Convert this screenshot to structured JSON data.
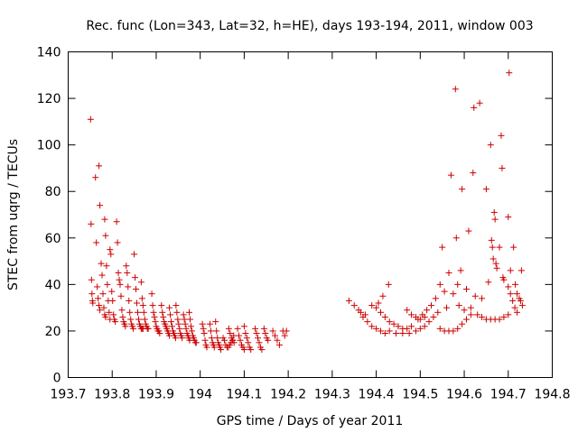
{
  "chart_data": {
    "type": "scatter",
    "title": "Rec. func (Lon=343, Lat=32, h=HE), days 193-194, 2011, window 003",
    "xlabel": "GPS time / Days of year 2011",
    "ylabel": "STEC from uqrg / TECUs",
    "xlim": [
      193.7,
      194.8
    ],
    "ylim": [
      0,
      140
    ],
    "xticks": [
      "193.7",
      "193.8",
      "193.9",
      "194",
      "194.1",
      "194.2",
      "194.3",
      "194.4",
      "194.5",
      "194.6",
      "194.7",
      "194.8"
    ],
    "xtick_values": [
      193.7,
      193.8,
      193.9,
      194.0,
      194.1,
      194.2,
      194.3,
      194.4,
      194.5,
      194.6,
      194.7,
      194.8
    ],
    "yticks": [
      "0",
      "20",
      "40",
      "60",
      "80",
      "100",
      "120",
      "140"
    ],
    "ytick_values": [
      0,
      20,
      40,
      60,
      80,
      100,
      120,
      140
    ],
    "grid": false,
    "legend": false,
    "color": "#cc0000",
    "series": [
      {
        "points": [
          [
            193.751,
            111
          ],
          [
            193.752,
            66
          ],
          [
            193.753,
            42
          ],
          [
            193.754,
            36
          ],
          [
            193.755,
            33
          ],
          [
            193.756,
            32
          ],
          [
            193.762,
            86
          ],
          [
            193.764,
            58
          ],
          [
            193.766,
            39
          ],
          [
            193.768,
            34
          ],
          [
            193.77,
            31
          ],
          [
            193.772,
            29
          ],
          [
            193.77,
            91
          ],
          [
            193.772,
            74
          ],
          [
            193.775,
            49
          ],
          [
            193.777,
            44
          ],
          [
            193.779,
            36
          ],
          [
            193.781,
            30
          ],
          [
            193.783,
            27
          ],
          [
            193.785,
            26
          ],
          [
            193.783,
            68
          ],
          [
            193.785,
            61
          ],
          [
            193.787,
            48
          ],
          [
            193.789,
            40
          ],
          [
            193.791,
            33
          ],
          [
            193.793,
            28
          ],
          [
            193.795,
            25
          ],
          [
            193.795,
            55
          ],
          [
            193.797,
            53
          ],
          [
            193.799,
            37
          ],
          [
            193.801,
            33
          ],
          [
            193.803,
            27
          ],
          [
            193.805,
            25
          ],
          [
            193.807,
            24
          ],
          [
            193.81,
            67
          ],
          [
            193.812,
            58
          ],
          [
            193.814,
            45
          ],
          [
            193.816,
            42
          ],
          [
            193.818,
            40
          ],
          [
            193.82,
            35
          ],
          [
            193.822,
            29
          ],
          [
            193.824,
            26
          ],
          [
            193.826,
            24
          ],
          [
            193.828,
            23
          ],
          [
            193.83,
            22
          ],
          [
            193.832,
            48
          ],
          [
            193.834,
            45
          ],
          [
            193.836,
            39
          ],
          [
            193.838,
            33
          ],
          [
            193.84,
            28
          ],
          [
            193.842,
            25
          ],
          [
            193.844,
            23
          ],
          [
            193.846,
            22
          ],
          [
            193.848,
            21
          ],
          [
            193.85,
            53
          ],
          [
            193.852,
            43
          ],
          [
            193.854,
            38
          ],
          [
            193.856,
            32
          ],
          [
            193.858,
            28
          ],
          [
            193.86,
            25
          ],
          [
            193.862,
            23
          ],
          [
            193.864,
            22
          ],
          [
            193.866,
            21
          ],
          [
            193.868,
            21
          ],
          [
            193.87,
            21
          ],
          [
            193.866,
            41
          ],
          [
            193.868,
            34
          ],
          [
            193.87,
            31
          ],
          [
            193.872,
            28
          ],
          [
            193.874,
            25
          ],
          [
            193.876,
            23
          ],
          [
            193.878,
            22
          ],
          [
            193.88,
            21
          ],
          [
            193.882,
            21
          ],
          [
            193.89,
            36
          ],
          [
            193.892,
            31
          ],
          [
            193.894,
            28
          ],
          [
            193.896,
            26
          ],
          [
            193.898,
            24
          ],
          [
            193.9,
            22
          ],
          [
            193.902,
            21
          ],
          [
            193.904,
            20
          ],
          [
            193.906,
            20
          ],
          [
            193.908,
            19
          ],
          [
            193.912,
            31
          ],
          [
            193.914,
            28
          ],
          [
            193.916,
            26
          ],
          [
            193.918,
            24
          ],
          [
            193.92,
            23
          ],
          [
            193.922,
            22
          ],
          [
            193.924,
            21
          ],
          [
            193.926,
            20
          ],
          [
            193.928,
            19
          ],
          [
            193.93,
            18
          ],
          [
            193.93,
            30
          ],
          [
            193.932,
            27
          ],
          [
            193.934,
            24
          ],
          [
            193.936,
            22
          ],
          [
            193.938,
            20
          ],
          [
            193.94,
            19
          ],
          [
            193.942,
            18
          ],
          [
            193.944,
            17
          ],
          [
            193.945,
            31
          ],
          [
            193.947,
            28
          ],
          [
            193.949,
            25
          ],
          [
            193.951,
            23
          ],
          [
            193.953,
            21
          ],
          [
            193.955,
            19
          ],
          [
            193.957,
            18
          ],
          [
            193.959,
            17
          ],
          [
            193.962,
            27
          ],
          [
            193.964,
            25
          ],
          [
            193.966,
            23
          ],
          [
            193.968,
            21
          ],
          [
            193.97,
            19
          ],
          [
            193.972,
            18
          ],
          [
            193.974,
            17
          ],
          [
            193.976,
            16
          ],
          [
            193.975,
            28
          ],
          [
            193.977,
            25
          ],
          [
            193.979,
            22
          ],
          [
            193.981,
            20
          ],
          [
            193.983,
            18
          ],
          [
            193.985,
            17
          ],
          [
            193.987,
            16
          ],
          [
            193.989,
            15
          ],
          [
            193.991,
            15
          ],
          [
            194.005,
            23
          ],
          [
            194.007,
            21
          ],
          [
            194.009,
            19
          ],
          [
            194.011,
            16
          ],
          [
            194.013,
            14
          ],
          [
            194.015,
            13
          ],
          [
            194.022,
            23
          ],
          [
            194.024,
            20
          ],
          [
            194.026,
            17
          ],
          [
            194.028,
            15
          ],
          [
            194.03,
            14
          ],
          [
            194.032,
            13
          ],
          [
            194.035,
            24
          ],
          [
            194.037,
            20
          ],
          [
            194.039,
            17
          ],
          [
            194.041,
            15
          ],
          [
            194.043,
            14
          ],
          [
            194.045,
            13
          ],
          [
            194.047,
            12
          ],
          [
            194.052,
            17
          ],
          [
            194.055,
            16
          ],
          [
            194.058,
            14
          ],
          [
            194.061,
            13
          ],
          [
            194.064,
            13
          ],
          [
            194.067,
            14
          ],
          [
            194.07,
            15
          ],
          [
            194.073,
            16
          ],
          [
            194.076,
            18
          ],
          [
            194.065,
            21
          ],
          [
            194.068,
            19
          ],
          [
            194.071,
            17
          ],
          [
            194.074,
            16
          ],
          [
            194.077,
            15
          ],
          [
            194.085,
            21
          ],
          [
            194.088,
            18
          ],
          [
            194.091,
            16
          ],
          [
            194.094,
            14
          ],
          [
            194.097,
            13
          ],
          [
            194.1,
            12
          ],
          [
            194.1,
            22
          ],
          [
            194.103,
            19
          ],
          [
            194.106,
            17
          ],
          [
            194.109,
            15
          ],
          [
            194.112,
            13
          ],
          [
            194.115,
            12
          ],
          [
            194.125,
            21
          ],
          [
            194.128,
            19
          ],
          [
            194.131,
            17
          ],
          [
            194.134,
            15
          ],
          [
            194.137,
            13
          ],
          [
            194.14,
            12
          ],
          [
            194.145,
            21
          ],
          [
            194.148,
            19
          ],
          [
            194.151,
            17
          ],
          [
            194.154,
            16
          ],
          [
            194.165,
            20
          ],
          [
            194.17,
            18
          ],
          [
            194.175,
            16
          ],
          [
            194.18,
            14
          ],
          [
            194.188,
            20
          ],
          [
            194.192,
            18
          ],
          [
            194.196,
            20
          ],
          [
            194.338,
            33
          ],
          [
            194.35,
            31
          ],
          [
            194.36,
            29
          ],
          [
            194.37,
            26
          ],
          [
            194.38,
            24
          ],
          [
            194.39,
            22
          ],
          [
            194.4,
            21
          ],
          [
            194.41,
            20
          ],
          [
            194.42,
            19
          ],
          [
            194.365,
            28
          ],
          [
            194.375,
            27
          ],
          [
            194.39,
            31
          ],
          [
            194.4,
            30
          ],
          [
            194.41,
            28
          ],
          [
            194.42,
            26
          ],
          [
            194.43,
            24
          ],
          [
            194.44,
            23
          ],
          [
            194.45,
            22
          ],
          [
            194.46,
            21
          ],
          [
            194.47,
            21
          ],
          [
            194.48,
            22
          ],
          [
            194.405,
            32
          ],
          [
            194.415,
            35
          ],
          [
            194.428,
            40
          ],
          [
            194.43,
            20
          ],
          [
            194.445,
            19
          ],
          [
            194.46,
            19
          ],
          [
            194.475,
            19
          ],
          [
            194.49,
            20
          ],
          [
            194.5,
            21
          ],
          [
            194.51,
            22
          ],
          [
            194.52,
            24
          ],
          [
            194.53,
            26
          ],
          [
            194.54,
            28
          ],
          [
            194.47,
            29
          ],
          [
            194.48,
            27
          ],
          [
            194.49,
            26
          ],
          [
            194.5,
            25
          ],
          [
            194.51,
            26
          ],
          [
            194.495,
            25
          ],
          [
            194.505,
            27
          ],
          [
            194.515,
            29
          ],
          [
            194.525,
            31
          ],
          [
            194.535,
            34
          ],
          [
            194.545,
            40
          ],
          [
            194.55,
            56
          ],
          [
            194.555,
            37
          ],
          [
            194.56,
            30
          ],
          [
            194.565,
            45
          ],
          [
            194.57,
            87
          ],
          [
            194.575,
            36
          ],
          [
            194.545,
            21
          ],
          [
            194.555,
            20
          ],
          [
            194.565,
            20
          ],
          [
            194.575,
            20
          ],
          [
            194.585,
            21
          ],
          [
            194.595,
            23
          ],
          [
            194.605,
            25
          ],
          [
            194.615,
            27
          ],
          [
            194.58,
            124
          ],
          [
            194.582,
            60
          ],
          [
            194.585,
            40
          ],
          [
            194.588,
            31
          ],
          [
            194.592,
            46
          ],
          [
            194.595,
            81
          ],
          [
            194.6,
            29
          ],
          [
            194.605,
            38
          ],
          [
            194.61,
            63
          ],
          [
            194.615,
            30
          ],
          [
            194.62,
            88
          ],
          [
            194.622,
            116
          ],
          [
            194.625,
            35
          ],
          [
            194.63,
            27
          ],
          [
            194.635,
            118
          ],
          [
            194.64,
            34
          ],
          [
            194.64,
            26
          ],
          [
            194.65,
            25
          ],
          [
            194.66,
            25
          ],
          [
            194.67,
            25
          ],
          [
            194.68,
            25
          ],
          [
            194.69,
            26
          ],
          [
            194.7,
            27
          ],
          [
            194.65,
            81
          ],
          [
            194.655,
            41
          ],
          [
            194.66,
            100
          ],
          [
            194.662,
            59
          ],
          [
            194.664,
            56
          ],
          [
            194.666,
            51
          ],
          [
            194.668,
            71
          ],
          [
            194.67,
            68
          ],
          [
            194.672,
            49
          ],
          [
            194.674,
            47
          ],
          [
            194.68,
            56
          ],
          [
            194.684,
            104
          ],
          [
            194.686,
            90
          ],
          [
            194.688,
            43
          ],
          [
            194.69,
            42
          ],
          [
            194.7,
            69
          ],
          [
            194.702,
            131
          ],
          [
            194.705,
            46
          ],
          [
            194.7,
            39
          ],
          [
            194.705,
            36
          ],
          [
            194.71,
            33
          ],
          [
            194.715,
            30
          ],
          [
            194.72,
            28
          ],
          [
            194.712,
            56
          ],
          [
            194.716,
            40
          ],
          [
            194.72,
            36
          ],
          [
            194.725,
            34
          ],
          [
            194.728,
            33
          ],
          [
            194.73,
            46
          ],
          [
            194.732,
            31
          ]
        ]
      }
    ]
  }
}
